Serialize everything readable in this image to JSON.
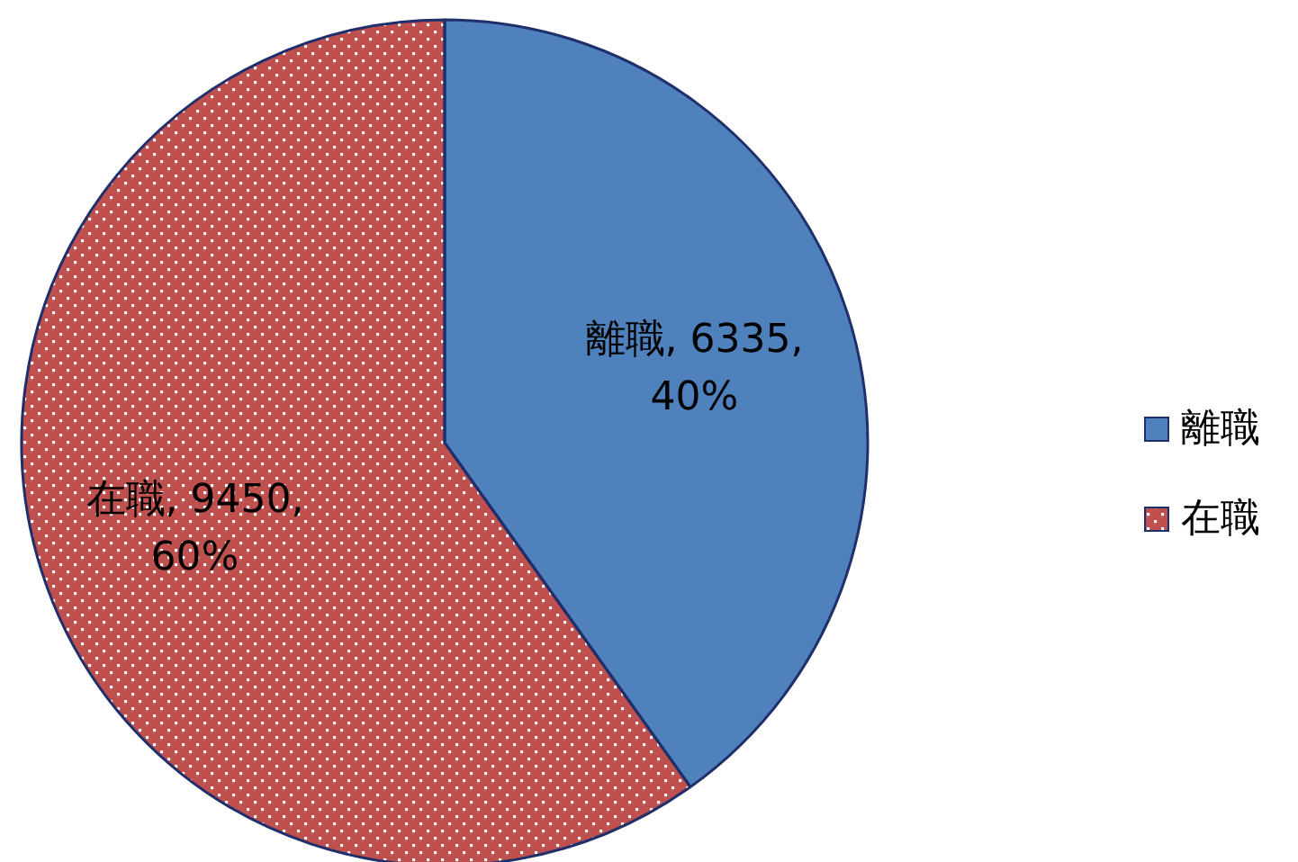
{
  "chart_data": {
    "type": "pie",
    "categories": [
      "離職",
      "在職"
    ],
    "values": [
      6335,
      9450
    ],
    "colors": [
      "#4f81bd",
      "#c0504d"
    ],
    "value_labels": [
      "離職, 6335, 40%",
      "在職, 9450, 60%"
    ],
    "legend": "right"
  }
}
